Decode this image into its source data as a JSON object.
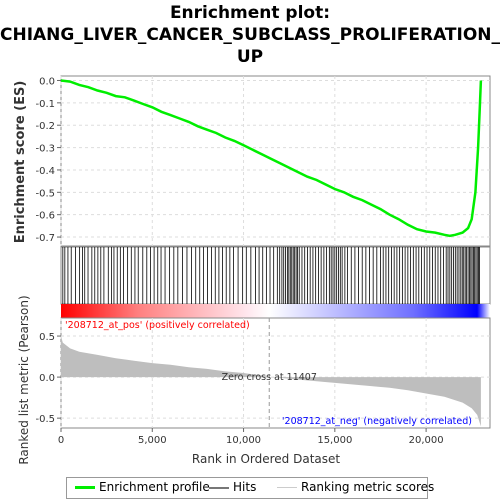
{
  "title_lines": [
    "Enrichment plot:",
    "CHIANG_LIVER_CANCER_SUBCLASS_PROLIFERATION_",
    "UP"
  ],
  "colors": {
    "enrichment": "#00ee00",
    "hits": "#000000",
    "metric": "#bebebe",
    "grid": "#dddddd",
    "pos": "#ff0000",
    "neg": "#0000ff"
  },
  "chart_data": {
    "type": "line",
    "x_range": [
      0,
      23500
    ],
    "x_ticks": [
      0,
      5000,
      10000,
      15000,
      20000
    ],
    "x_tick_labels": [
      "0",
      "5,000",
      "10,000",
      "15,000",
      "20,000"
    ],
    "xlabel": "Rank in Ordered Dataset",
    "enrichment": {
      "ylabel": "Enrichment score (ES)",
      "ylim": [
        -0.74,
        0.02
      ],
      "y_ticks": [
        0.0,
        -0.1,
        -0.2,
        -0.3,
        -0.4,
        -0.5,
        -0.6,
        -0.7
      ],
      "y_tick_labels": [
        "0.0",
        "-0.1",
        "-0.2",
        "-0.3",
        "-0.4",
        "-0.5",
        "-0.6",
        "-0.7"
      ],
      "points": [
        [
          0,
          0.0
        ],
        [
          500,
          -0.005
        ],
        [
          1000,
          -0.02
        ],
        [
          1500,
          -0.03
        ],
        [
          2000,
          -0.045
        ],
        [
          2500,
          -0.055
        ],
        [
          3000,
          -0.07
        ],
        [
          3500,
          -0.075
        ],
        [
          4000,
          -0.09
        ],
        [
          4500,
          -0.105
        ],
        [
          5000,
          -0.12
        ],
        [
          5500,
          -0.14
        ],
        [
          6000,
          -0.155
        ],
        [
          6500,
          -0.17
        ],
        [
          7000,
          -0.185
        ],
        [
          7500,
          -0.205
        ],
        [
          8000,
          -0.22
        ],
        [
          8500,
          -0.235
        ],
        [
          9000,
          -0.255
        ],
        [
          9500,
          -0.27
        ],
        [
          10000,
          -0.29
        ],
        [
          10500,
          -0.31
        ],
        [
          11000,
          -0.33
        ],
        [
          11500,
          -0.35
        ],
        [
          12000,
          -0.37
        ],
        [
          12500,
          -0.39
        ],
        [
          13000,
          -0.41
        ],
        [
          13500,
          -0.43
        ],
        [
          14000,
          -0.445
        ],
        [
          14500,
          -0.465
        ],
        [
          15000,
          -0.485
        ],
        [
          15500,
          -0.5
        ],
        [
          16000,
          -0.52
        ],
        [
          16500,
          -0.535
        ],
        [
          17000,
          -0.555
        ],
        [
          17500,
          -0.575
        ],
        [
          18000,
          -0.6
        ],
        [
          18500,
          -0.62
        ],
        [
          19000,
          -0.645
        ],
        [
          19500,
          -0.665
        ],
        [
          20000,
          -0.675
        ],
        [
          20500,
          -0.68
        ],
        [
          21000,
          -0.69
        ],
        [
          21300,
          -0.695
        ],
        [
          21600,
          -0.69
        ],
        [
          22000,
          -0.68
        ],
        [
          22300,
          -0.66
        ],
        [
          22500,
          -0.62
        ],
        [
          22700,
          -0.5
        ],
        [
          22850,
          -0.3
        ],
        [
          22950,
          -0.1
        ],
        [
          23000,
          0.0
        ]
      ]
    },
    "hits": [
      100,
      210,
      380,
      560,
      790,
      1020,
      1180,
      1300,
      1480,
      1690,
      1850,
      2020,
      2180,
      2350,
      2590,
      2760,
      2900,
      3080,
      3250,
      3420,
      3650,
      3850,
      4050,
      4230,
      4480,
      4700,
      4900,
      5100,
      5300,
      5480,
      5700,
      5950,
      6180,
      6400,
      6650,
      6900,
      7150,
      7380,
      7600,
      7800,
      8020,
      8250,
      8450,
      8650,
      8850,
      9050,
      9250,
      9450,
      9700,
      9950,
      10150,
      10400,
      10650,
      10850,
      11050,
      11250,
      11450,
      11650,
      11850,
      11980,
      12100,
      12200,
      12300,
      12400,
      12480,
      12560,
      12640,
      12720,
      12800,
      12880,
      12960,
      13050,
      13200,
      13350,
      13500,
      13650,
      13800,
      13950,
      14100,
      14250,
      14400,
      14550,
      14700,
      14800,
      14900,
      15000,
      15100,
      15200,
      15300,
      15400,
      15550,
      15700,
      15900,
      16100,
      16300,
      16500,
      16700,
      16900,
      17100,
      17300,
      17500,
      17650,
      17800,
      17950,
      18100,
      18250,
      18400,
      18550,
      18700,
      18850,
      19000,
      19150,
      19300,
      19450,
      19600,
      19750,
      19900,
      20050,
      20200,
      20350,
      20500,
      20650,
      20800,
      20950,
      21100,
      21200,
      21300,
      21400,
      21500,
      21600,
      21700,
      21800,
      21900,
      21980,
      22060,
      22140,
      22220,
      22300,
      22380,
      22450,
      22520,
      22590,
      22660,
      22730,
      22800,
      22870,
      22930
    ],
    "ranked_metric": {
      "ylabel": "Ranked list metric (Pearson)",
      "ylim": [
        -0.62,
        0.72
      ],
      "y_ticks": [
        0.5,
        0.0,
        -0.5
      ],
      "y_tick_labels": [
        "0.5",
        "0.0",
        "-0.5"
      ],
      "points": [
        [
          0,
          0.5
        ],
        [
          100,
          0.42
        ],
        [
          500,
          0.35
        ],
        [
          1000,
          0.31
        ],
        [
          2000,
          0.27
        ],
        [
          3000,
          0.23
        ],
        [
          4000,
          0.2
        ],
        [
          5000,
          0.17
        ],
        [
          6000,
          0.15
        ],
        [
          7000,
          0.12
        ],
        [
          8000,
          0.1
        ],
        [
          9000,
          0.07
        ],
        [
          10000,
          0.05
        ],
        [
          11000,
          0.02
        ],
        [
          11407,
          0.0
        ],
        [
          12000,
          -0.01
        ],
        [
          13000,
          -0.03
        ],
        [
          14000,
          -0.05
        ],
        [
          15000,
          -0.07
        ],
        [
          16000,
          -0.09
        ],
        [
          17000,
          -0.11
        ],
        [
          18000,
          -0.13
        ],
        [
          19000,
          -0.16
        ],
        [
          20000,
          -0.2
        ],
        [
          21000,
          -0.24
        ],
        [
          22000,
          -0.31
        ],
        [
          22500,
          -0.38
        ],
        [
          22800,
          -0.46
        ],
        [
          23000,
          -0.6
        ]
      ]
    },
    "zero_cross_rank": 11407,
    "annotations": {
      "pos": "'208712_at_pos' (positively correlated)",
      "neg": "'208712_at_neg' (negatively correlated)",
      "zero_cross": "Zero cross at 11407"
    },
    "legend": {
      "entries": [
        "Enrichment profile",
        "Hits",
        "Ranking metric scores"
      ],
      "placement": "bottom"
    }
  }
}
